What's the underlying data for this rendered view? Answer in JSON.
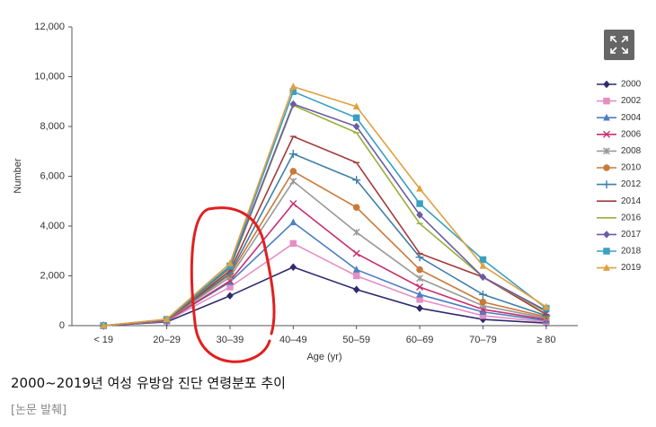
{
  "chart_data": {
    "type": "line",
    "categories": [
      "< 19",
      "20–29",
      "30–39",
      "40–49",
      "50–59",
      "60–69",
      "70–79",
      "≥ 80"
    ],
    "x_label": "Age (yr)",
    "y_label": "Number",
    "ylim": [
      0,
      12000
    ],
    "yticks": [
      0,
      {
        "value": 2000,
        "label": "2,000"
      },
      {
        "value": 4000,
        "label": "4,000"
      },
      {
        "value": 6000,
        "label": "6,000"
      },
      {
        "value": 8000,
        "label": "8,000"
      },
      {
        "value": 10000,
        "label": "10,000"
      },
      {
        "value": 12000,
        "label": "12,000"
      }
    ],
    "grid": false,
    "legend": "right",
    "series": [
      {
        "name": "2000",
        "color": "#2e2a6e",
        "marker": "diamond",
        "values": [
          0,
          150,
          1200,
          2350,
          1450,
          700,
          250,
          100
        ]
      },
      {
        "name": "2002",
        "color": "#e48fc4",
        "marker": "square",
        "values": [
          0,
          180,
          1550,
          3300,
          2000,
          1050,
          400,
          150
        ]
      },
      {
        "name": "2004",
        "color": "#4a7fc1",
        "marker": "triangle",
        "values": [
          0,
          200,
          1750,
          4150,
          2250,
          1250,
          550,
          200
        ]
      },
      {
        "name": "2006",
        "color": "#c8306f",
        "marker": "x",
        "values": [
          0,
          200,
          1800,
          4900,
          2900,
          1550,
          650,
          250
        ]
      },
      {
        "name": "2008",
        "color": "#999999",
        "marker": "asterisk",
        "values": [
          0,
          220,
          1950,
          5800,
          3750,
          1900,
          800,
          300
        ]
      },
      {
        "name": "2010",
        "color": "#c97a3a",
        "marker": "circle",
        "values": [
          0,
          220,
          2050,
          6200,
          4750,
          2250,
          950,
          350
        ]
      },
      {
        "name": "2012",
        "color": "#3f7fa8",
        "marker": "plus",
        "values": [
          0,
          230,
          2100,
          6900,
          5850,
          2750,
          1250,
          400
        ]
      },
      {
        "name": "2014",
        "color": "#a33a3a",
        "marker": "dash",
        "values": [
          0,
          230,
          2200,
          7600,
          6550,
          2900,
          1950,
          450
        ]
      },
      {
        "name": "2016",
        "color": "#94b13a",
        "marker": "dash",
        "values": [
          0,
          240,
          2300,
          8850,
          7750,
          4100,
          1950,
          550
        ]
      },
      {
        "name": "2017",
        "color": "#6b5aa5",
        "marker": "diamond",
        "values": [
          0,
          240,
          2350,
          8900,
          8000,
          4450,
          1950,
          600
        ]
      },
      {
        "name": "2018",
        "color": "#3aa0c0",
        "marker": "square",
        "values": [
          0,
          250,
          2400,
          9400,
          8350,
          4900,
          2650,
          700
        ]
      },
      {
        "name": "2019",
        "color": "#e0a040",
        "marker": "triangle",
        "values": [
          0,
          260,
          2500,
          9600,
          8800,
          5500,
          2400,
          750
        ]
      }
    ]
  },
  "caption": "2000~2019년 여성 유방암 진단 연령분포 추이",
  "source": "[논문 발췌]"
}
